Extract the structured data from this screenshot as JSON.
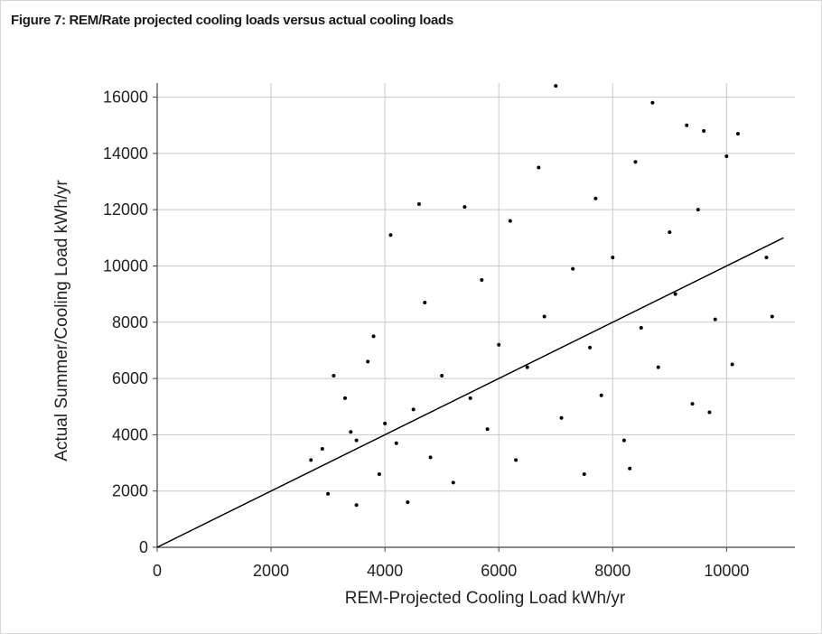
{
  "figure": {
    "title": "Figure 7: REM/Rate projected cooling loads versus actual cooling loads"
  },
  "chart_data": {
    "type": "scatter",
    "title": "Figure 7: REM/Rate projected cooling loads versus actual cooling loads",
    "xlabel": "REM-Projected Cooling Load kWh/yr",
    "ylabel": "Actual Summer/Cooling Load kWh/yr",
    "xlim": [
      0,
      11200
    ],
    "ylim": [
      0,
      16500
    ],
    "x_ticks": [
      0,
      2000,
      4000,
      6000,
      8000,
      10000
    ],
    "y_ticks": [
      0,
      2000,
      4000,
      6000,
      8000,
      10000,
      12000,
      14000,
      16000
    ],
    "grid": true,
    "point_color": "#000000",
    "reference_line": {
      "x": [
        0,
        11000
      ],
      "y": [
        0,
        11000
      ]
    },
    "series": [
      {
        "values": [
          {
            "x": 2700,
            "y": 3100
          },
          {
            "x": 2900,
            "y": 3500
          },
          {
            "x": 3000,
            "y": 1900
          },
          {
            "x": 3100,
            "y": 6100
          },
          {
            "x": 3300,
            "y": 5300
          },
          {
            "x": 3400,
            "y": 4100
          },
          {
            "x": 3500,
            "y": 1500
          },
          {
            "x": 3500,
            "y": 3800
          },
          {
            "x": 3700,
            "y": 6600
          },
          {
            "x": 3800,
            "y": 7500
          },
          {
            "x": 3900,
            "y": 2600
          },
          {
            "x": 4000,
            "y": 4400
          },
          {
            "x": 4100,
            "y": 11100
          },
          {
            "x": 4200,
            "y": 3700
          },
          {
            "x": 4400,
            "y": 1600
          },
          {
            "x": 4500,
            "y": 4900
          },
          {
            "x": 4600,
            "y": 12200
          },
          {
            "x": 4700,
            "y": 8700
          },
          {
            "x": 4800,
            "y": 3200
          },
          {
            "x": 5000,
            "y": 6100
          },
          {
            "x": 5200,
            "y": 2300
          },
          {
            "x": 5400,
            "y": 12100
          },
          {
            "x": 5500,
            "y": 5300
          },
          {
            "x": 5700,
            "y": 9500
          },
          {
            "x": 5800,
            "y": 4200
          },
          {
            "x": 6000,
            "y": 7200
          },
          {
            "x": 6200,
            "y": 11600
          },
          {
            "x": 6300,
            "y": 3100
          },
          {
            "x": 6500,
            "y": 6400
          },
          {
            "x": 6700,
            "y": 13500
          },
          {
            "x": 6800,
            "y": 8200
          },
          {
            "x": 7000,
            "y": 16400
          },
          {
            "x": 7100,
            "y": 4600
          },
          {
            "x": 7300,
            "y": 9900
          },
          {
            "x": 7500,
            "y": 2600
          },
          {
            "x": 7600,
            "y": 7100
          },
          {
            "x": 7700,
            "y": 12400
          },
          {
            "x": 7800,
            "y": 5400
          },
          {
            "x": 8000,
            "y": 10300
          },
          {
            "x": 8200,
            "y": 3800
          },
          {
            "x": 8300,
            "y": 2800
          },
          {
            "x": 8400,
            "y": 13700
          },
          {
            "x": 8500,
            "y": 7800
          },
          {
            "x": 8700,
            "y": 15800
          },
          {
            "x": 8800,
            "y": 6400
          },
          {
            "x": 9000,
            "y": 11200
          },
          {
            "x": 9100,
            "y": 9000
          },
          {
            "x": 9300,
            "y": 15000
          },
          {
            "x": 9400,
            "y": 5100
          },
          {
            "x": 9500,
            "y": 12000
          },
          {
            "x": 9600,
            "y": 14800
          },
          {
            "x": 9700,
            "y": 4800
          },
          {
            "x": 9800,
            "y": 8100
          },
          {
            "x": 10000,
            "y": 13900
          },
          {
            "x": 10100,
            "y": 6500
          },
          {
            "x": 10200,
            "y": 14700
          },
          {
            "x": 10700,
            "y": 10300
          },
          {
            "x": 10800,
            "y": 8200
          }
        ]
      }
    ]
  }
}
